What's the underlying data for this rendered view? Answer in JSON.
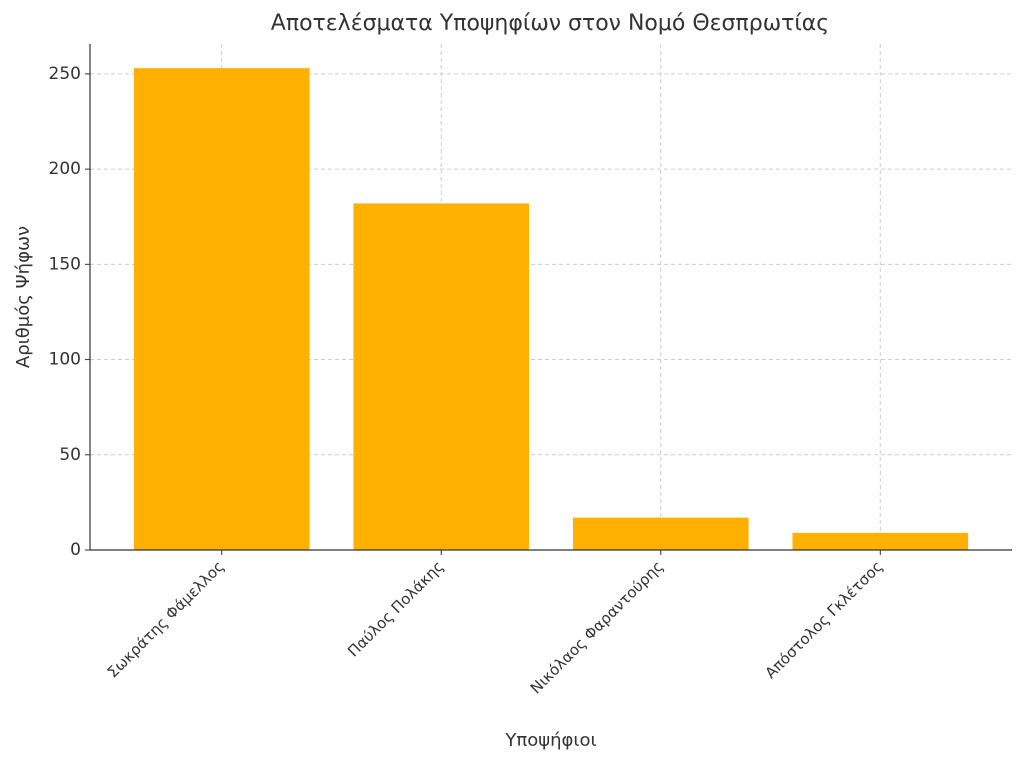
{
  "chart_data": {
    "type": "bar",
    "title": "Αποτελέσματα Υποψηφίων στον Νομό Θεσπρωτίας",
    "x_label": "Υποψήφιοι",
    "y_label": "Αριθμός Ψήφων",
    "categories": [
      "Σωκράτης Φάμελλος",
      "Παύλος Πολάκης",
      "Νικόλαος Φαραντούρης",
      "Απόστολος Γκλέτσος"
    ],
    "values": [
      253,
      182,
      17,
      9
    ],
    "color": "#ffb000",
    "ylim": [
      0,
      265.7
    ],
    "yticks": [
      0,
      50,
      100,
      150,
      200,
      250
    ],
    "grid": true
  }
}
